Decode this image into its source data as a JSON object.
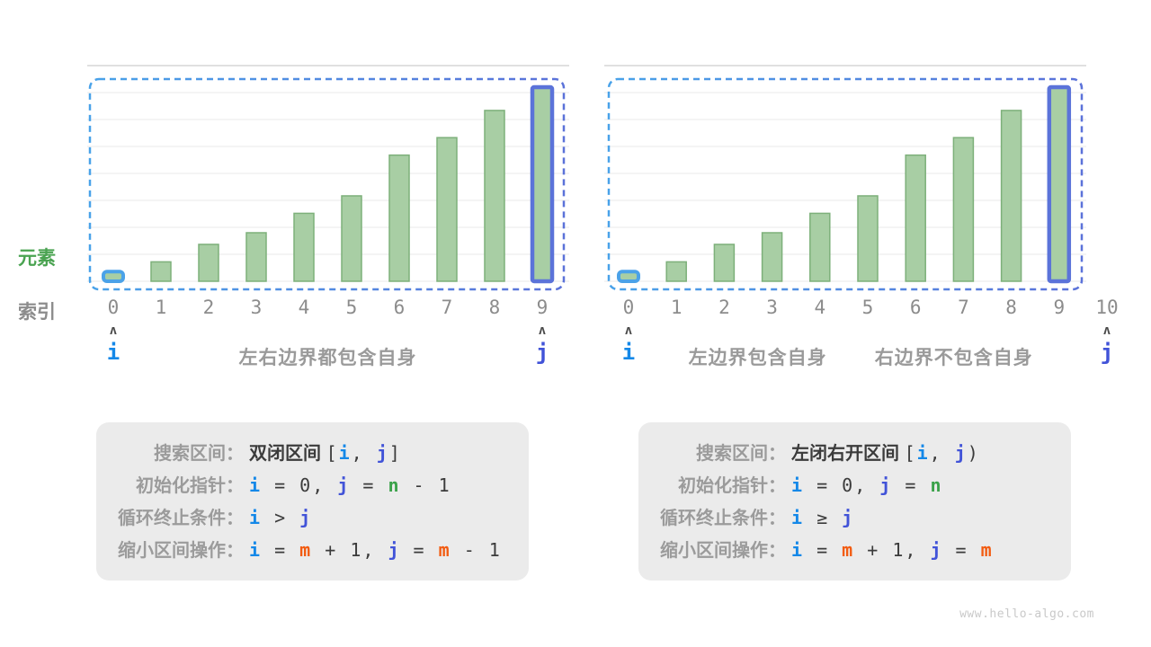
{
  "watermark": "www.hello-algo.com",
  "side_labels": {
    "element": "元素",
    "index": "索引"
  },
  "palette": {
    "i_blue": "#1488e8",
    "j_indigo": "#4153d8",
    "n_green": "#3ba24a",
    "m_orange": "#f25c12",
    "bar_fill": "#a8cea4",
    "bar_stroke": "#7db07a",
    "bar0_highlight_stroke": "#4ba2e8",
    "bar9_highlight_stroke": "#5b73d9",
    "dash_gradient_left": "#49a2e9",
    "dash_gradient_right": "#5b72d9",
    "caption_gray": "#9a9a9a",
    "box_bg": "#ebebeb",
    "grid_line": "#e8e8e8",
    "top_line": "#d6d6d6"
  },
  "chart_data": [
    {
      "type": "bar",
      "title": "双闭区间 [i, j]",
      "categories": [
        "0",
        "1",
        "2",
        "3",
        "4",
        "5",
        "6",
        "7",
        "8",
        "9"
      ],
      "values": [
        0.5,
        1.0,
        1.9,
        2.5,
        3.5,
        4.4,
        6.5,
        7.4,
        8.8,
        10.0
      ],
      "ylim": [
        0,
        10
      ],
      "xlabel": "索引",
      "ylabel": "元素",
      "grid": true,
      "highlighted_bars": [
        {
          "index": 0,
          "stroke": "#4ba2e8",
          "pointer": "i"
        },
        {
          "index": 9,
          "stroke": "#5b73d9",
          "pointer": "j"
        }
      ],
      "interval_box": {
        "from_index": 0,
        "to_index": 9,
        "style": "dashed"
      },
      "pointers": [
        {
          "label": "i",
          "slot": 0,
          "color": "#1488e8"
        },
        {
          "label": "j",
          "slot": 9,
          "color": "#4153d8"
        }
      ],
      "captions": [
        {
          "text": "左右边界都包含自身",
          "slot": 4.5
        }
      ]
    },
    {
      "type": "bar",
      "title": "左闭右开区间 [i, j)",
      "categories": [
        "0",
        "1",
        "2",
        "3",
        "4",
        "5",
        "6",
        "7",
        "8",
        "9",
        "10"
      ],
      "values": [
        0.5,
        1.0,
        1.9,
        2.5,
        3.5,
        4.4,
        6.5,
        7.4,
        8.8,
        10.0
      ],
      "ylim": [
        0,
        10
      ],
      "xlabel": "索引",
      "ylabel": "元素",
      "grid": true,
      "highlighted_bars": [
        {
          "index": 0,
          "stroke": "#4ba2e8",
          "pointer": "i"
        },
        {
          "index": 9,
          "stroke": "#5b73d9",
          "pointer": "j"
        }
      ],
      "interval_box": {
        "from_index": 0,
        "to_index": 9,
        "style": "dashed"
      },
      "pointers": [
        {
          "label": "i",
          "slot": 0,
          "color": "#1488e8"
        },
        {
          "label": "j",
          "slot": 10,
          "color": "#4153d8"
        }
      ],
      "captions": [
        {
          "text": "左边界包含自身",
          "slot": 2.7
        },
        {
          "text": "右边界不包含自身",
          "slot": 6.8
        }
      ]
    }
  ],
  "info_boxes": [
    {
      "lines": [
        [
          {
            "t": "搜索区间：",
            "s": "label"
          },
          {
            "t": "双闭区间 ",
            "s": "plain"
          },
          {
            "t": "[",
            "s": "code"
          },
          {
            "t": "i",
            "s": "i"
          },
          {
            "t": ", ",
            "s": "code"
          },
          {
            "t": "j",
            "s": "j"
          },
          {
            "t": "]",
            "s": "code"
          }
        ],
        [
          {
            "t": "初始化指针：",
            "s": "label"
          },
          {
            "t": "i",
            "s": "i"
          },
          {
            "t": " = 0, ",
            "s": "code"
          },
          {
            "t": "j",
            "s": "j"
          },
          {
            "t": " = ",
            "s": "code"
          },
          {
            "t": "n",
            "s": "n"
          },
          {
            "t": " - 1",
            "s": "code"
          }
        ],
        [
          {
            "t": "循环终止条件：",
            "s": "label"
          },
          {
            "t": "i",
            "s": "i"
          },
          {
            "t": " > ",
            "s": "code"
          },
          {
            "t": "j",
            "s": "j"
          }
        ],
        [
          {
            "t": "缩小区间操作：",
            "s": "label"
          },
          {
            "t": "i",
            "s": "i"
          },
          {
            "t": " = ",
            "s": "code"
          },
          {
            "t": "m",
            "s": "m"
          },
          {
            "t": " + 1, ",
            "s": "code"
          },
          {
            "t": "j",
            "s": "j"
          },
          {
            "t": " = ",
            "s": "code"
          },
          {
            "t": "m",
            "s": "m"
          },
          {
            "t": " - 1",
            "s": "code"
          }
        ]
      ]
    },
    {
      "lines": [
        [
          {
            "t": "搜索区间：",
            "s": "label"
          },
          {
            "t": "左闭右开区间 ",
            "s": "plain"
          },
          {
            "t": "[",
            "s": "code"
          },
          {
            "t": "i",
            "s": "i"
          },
          {
            "t": ", ",
            "s": "code"
          },
          {
            "t": "j",
            "s": "j"
          },
          {
            "t": ")",
            "s": "code"
          }
        ],
        [
          {
            "t": "初始化指针：",
            "s": "label"
          },
          {
            "t": "i",
            "s": "i"
          },
          {
            "t": " = 0, ",
            "s": "code"
          },
          {
            "t": "j",
            "s": "j"
          },
          {
            "t": " = ",
            "s": "code"
          },
          {
            "t": "n",
            "s": "n"
          }
        ],
        [
          {
            "t": "循环终止条件：",
            "s": "label"
          },
          {
            "t": "i",
            "s": "i"
          },
          {
            "t": " ≥ ",
            "s": "code"
          },
          {
            "t": "j",
            "s": "j"
          }
        ],
        [
          {
            "t": "缩小区间操作：",
            "s": "label"
          },
          {
            "t": "i",
            "s": "i"
          },
          {
            "t": " = ",
            "s": "code"
          },
          {
            "t": "m",
            "s": "m"
          },
          {
            "t": " + 1, ",
            "s": "code"
          },
          {
            "t": "j",
            "s": "j"
          },
          {
            "t": " = ",
            "s": "code"
          },
          {
            "t": "m",
            "s": "m"
          }
        ]
      ]
    }
  ]
}
